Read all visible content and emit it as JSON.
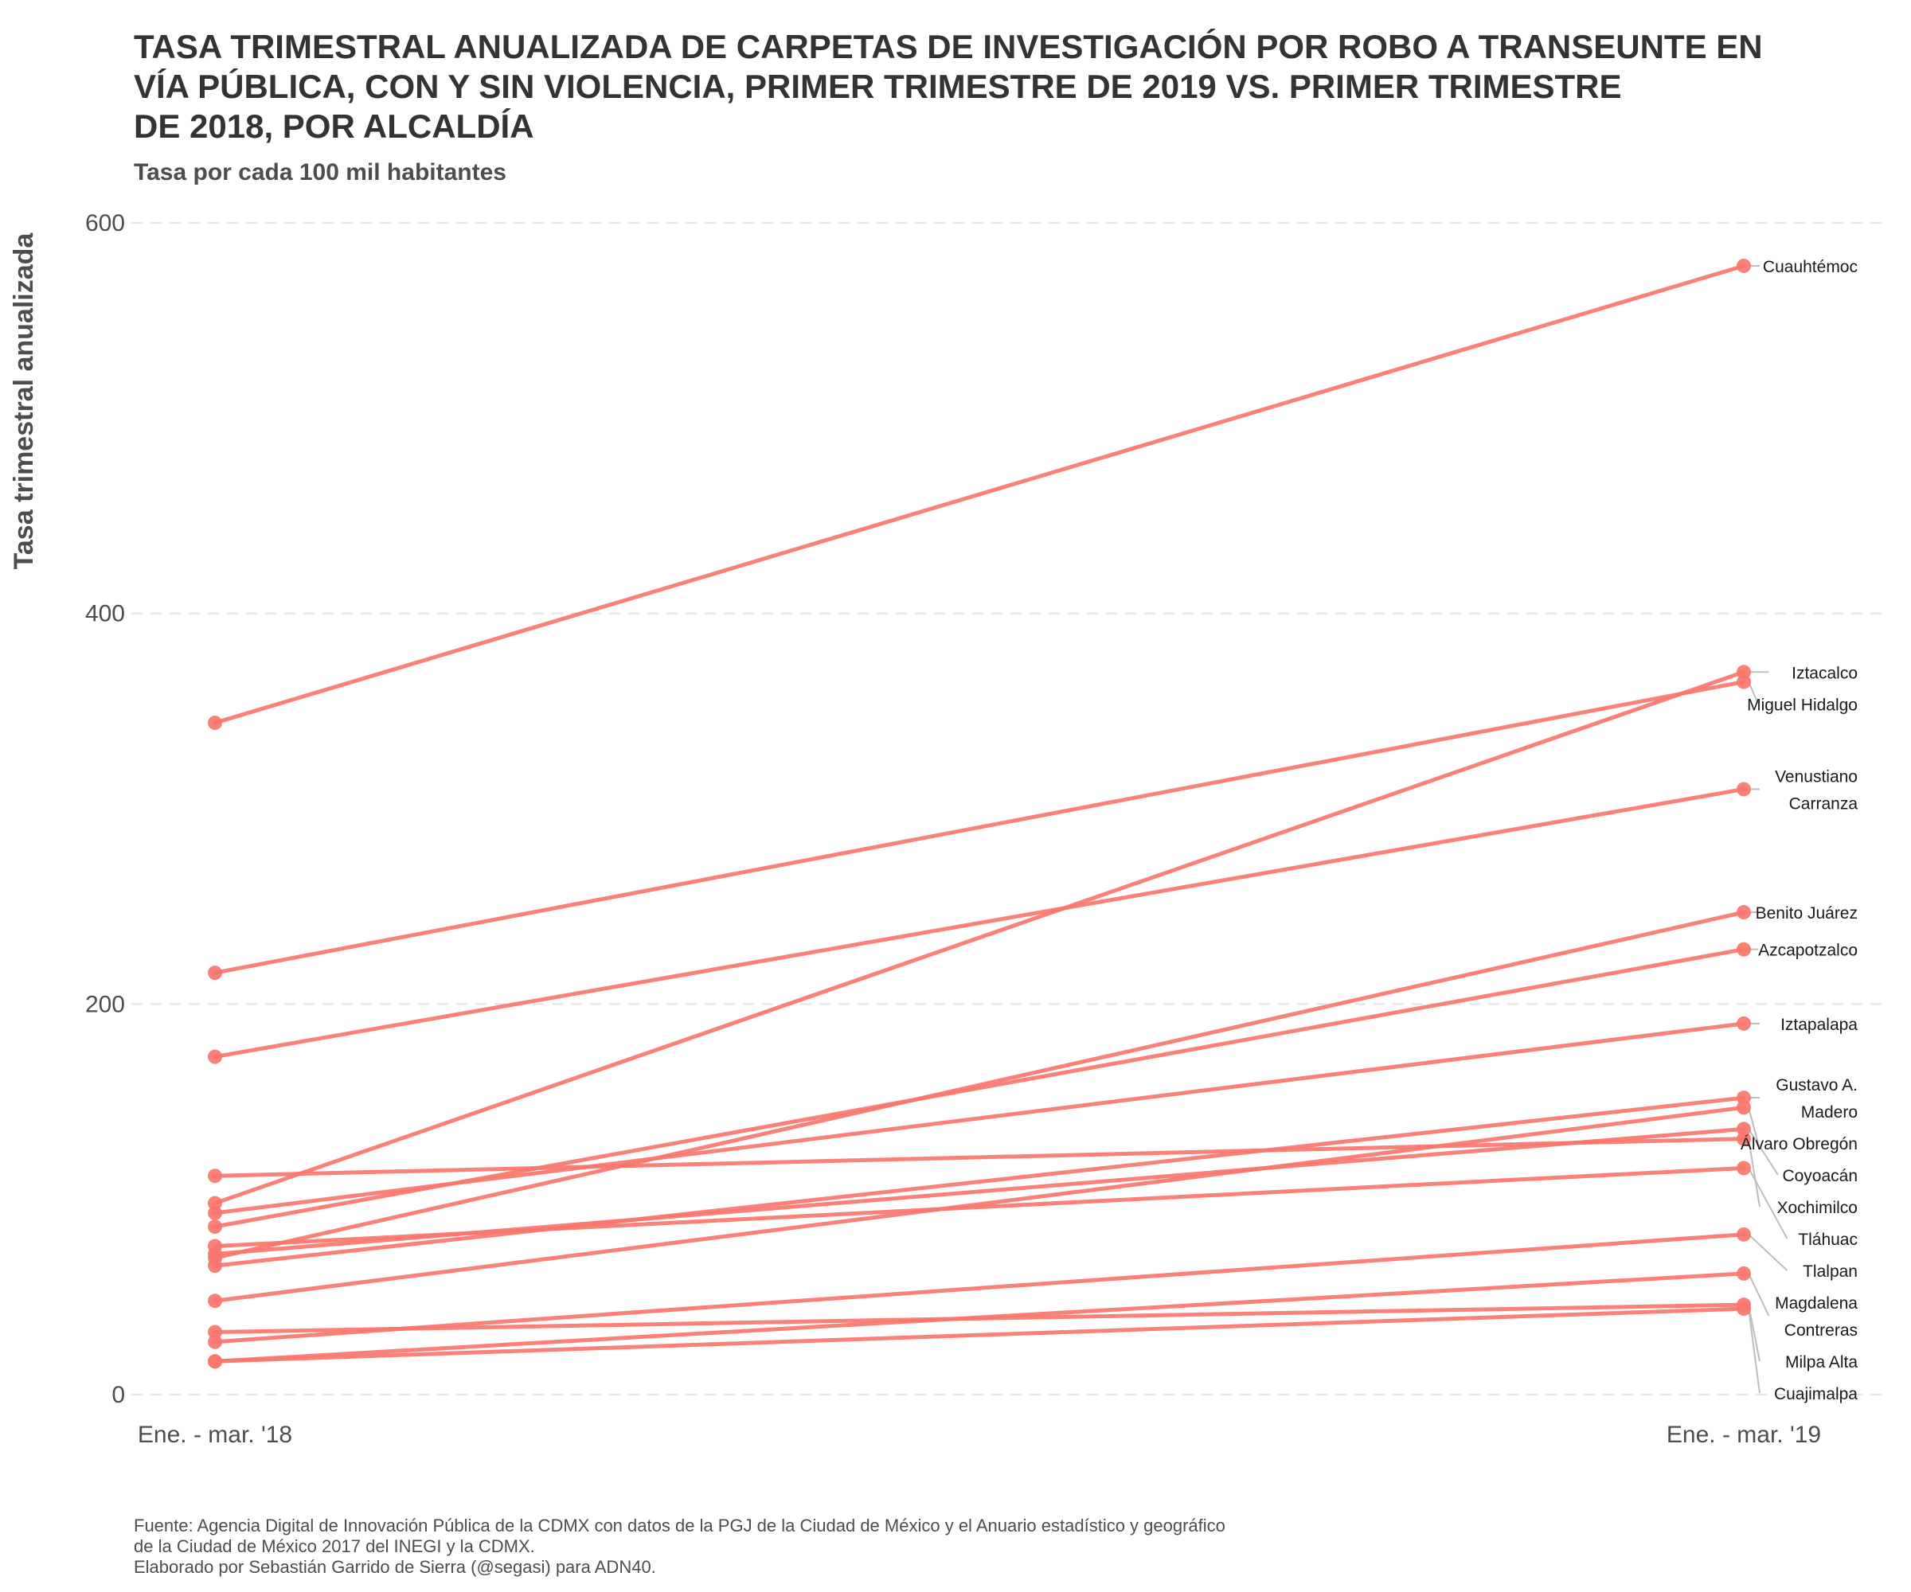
{
  "chart_data": {
    "type": "line",
    "title_lines": [
      "TASA TRIMESTRAL ANUALIZADA DE CARPETAS DE INVESTIGACIÓN POR ROBO A TRANSEUNTE EN",
      "VÍA PÚBLICA, CON Y SIN VIOLENCIA, PRIMER TRIMESTRE DE 2019 VS. PRIMER TRIMESTRE",
      "DE 2018, POR ALCALDÍA"
    ],
    "subtitle": "Tasa por cada 100 mil habitantes",
    "ylabel": "Tasa trimestral anualizada",
    "x": [
      "Ene. - mar. '18",
      "Ene. - mar. '19"
    ],
    "yticks": [
      0,
      200,
      400,
      600
    ],
    "ylim": [
      0,
      600
    ],
    "grid": "horizontal dashed",
    "color": "#f8766d",
    "series": [
      {
        "label_lines": [
          "Cuauhtémoc"
        ],
        "values": [
          344,
          578
        ]
      },
      {
        "label_lines": [
          "Iztacalco"
        ],
        "values": [
          98,
          370
        ]
      },
      {
        "label_lines": [
          "Miguel Hidalgo"
        ],
        "values": [
          216,
          365
        ]
      },
      {
        "label_lines": [
          "Venustiano",
          "Carranza"
        ],
        "values": [
          173,
          310
        ]
      },
      {
        "label_lines": [
          "Benito Juárez"
        ],
        "values": [
          70,
          247
        ]
      },
      {
        "label_lines": [
          "Azcapotzalco"
        ],
        "values": [
          86,
          228
        ]
      },
      {
        "label_lines": [
          "Iztapalapa"
        ],
        "values": [
          93,
          190
        ]
      },
      {
        "label_lines": [
          "Gustavo A.",
          "Madero"
        ],
        "values": [
          66,
          152
        ]
      },
      {
        "label_lines": [
          "Álvaro Obregón"
        ],
        "values": [
          48,
          147
        ]
      },
      {
        "label_lines": [
          "Coyoacán"
        ],
        "values": [
          72,
          136
        ]
      },
      {
        "label_lines": [
          "Xochimilco"
        ],
        "values": [
          112,
          131
        ]
      },
      {
        "label_lines": [
          "Tláhuac"
        ],
        "values": [
          76,
          116
        ]
      },
      {
        "label_lines": [
          "Tlalpan"
        ],
        "values": [
          27,
          82
        ]
      },
      {
        "label_lines": [
          "Magdalena",
          "Contreras"
        ],
        "values": [
          17,
          62
        ]
      },
      {
        "label_lines": [
          "Milpa Alta"
        ],
        "values": [
          32,
          46
        ]
      },
      {
        "label_lines": [
          "Cuajimalpa"
        ],
        "values": [
          17,
          44
        ]
      }
    ]
  },
  "caption_lines": [
    "Fuente: Agencia Digital de Innovación Pública de la CDMX con datos de la PGJ de la Ciudad de México y el Anuario estadístico y geográfico",
    "de la Ciudad de México 2017 del INEGI y la CDMX.",
    "Elaborado por Sebastián Garrido de Sierra (@segasi) para ADN40."
  ]
}
